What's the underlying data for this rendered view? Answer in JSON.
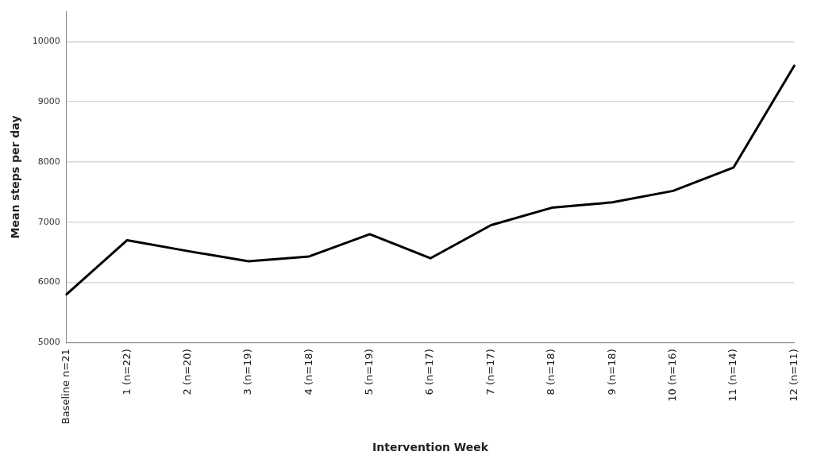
{
  "chart_data": {
    "type": "line",
    "xlabel": "Intervention Week",
    "ylabel": "Mean steps per day",
    "categories": [
      "Baseline n=21",
      "1 (n=22)",
      "2 (n=20)",
      "3 (n=19)",
      "4 (n=18)",
      "5 (n=19)",
      "6 (n=17)",
      "7 (n=17)",
      "8 (n=18)",
      "9 (n=18)",
      "10 (n=16)",
      "11 (n=14)",
      "12 (n=11)"
    ],
    "series": [
      {
        "color": "#000000",
        "values": [
          5800,
          6700,
          6520,
          6350,
          6430,
          6800,
          6400,
          6950,
          7240,
          7330,
          7520,
          7910,
          9600
        ]
      }
    ],
    "ylim": [
      5000,
      10500
    ],
    "yticks": [
      5000,
      6000,
      7000,
      8000,
      9000,
      10000
    ],
    "grid": "y",
    "legend": false,
    "marker": "none",
    "line_style": "solid"
  }
}
